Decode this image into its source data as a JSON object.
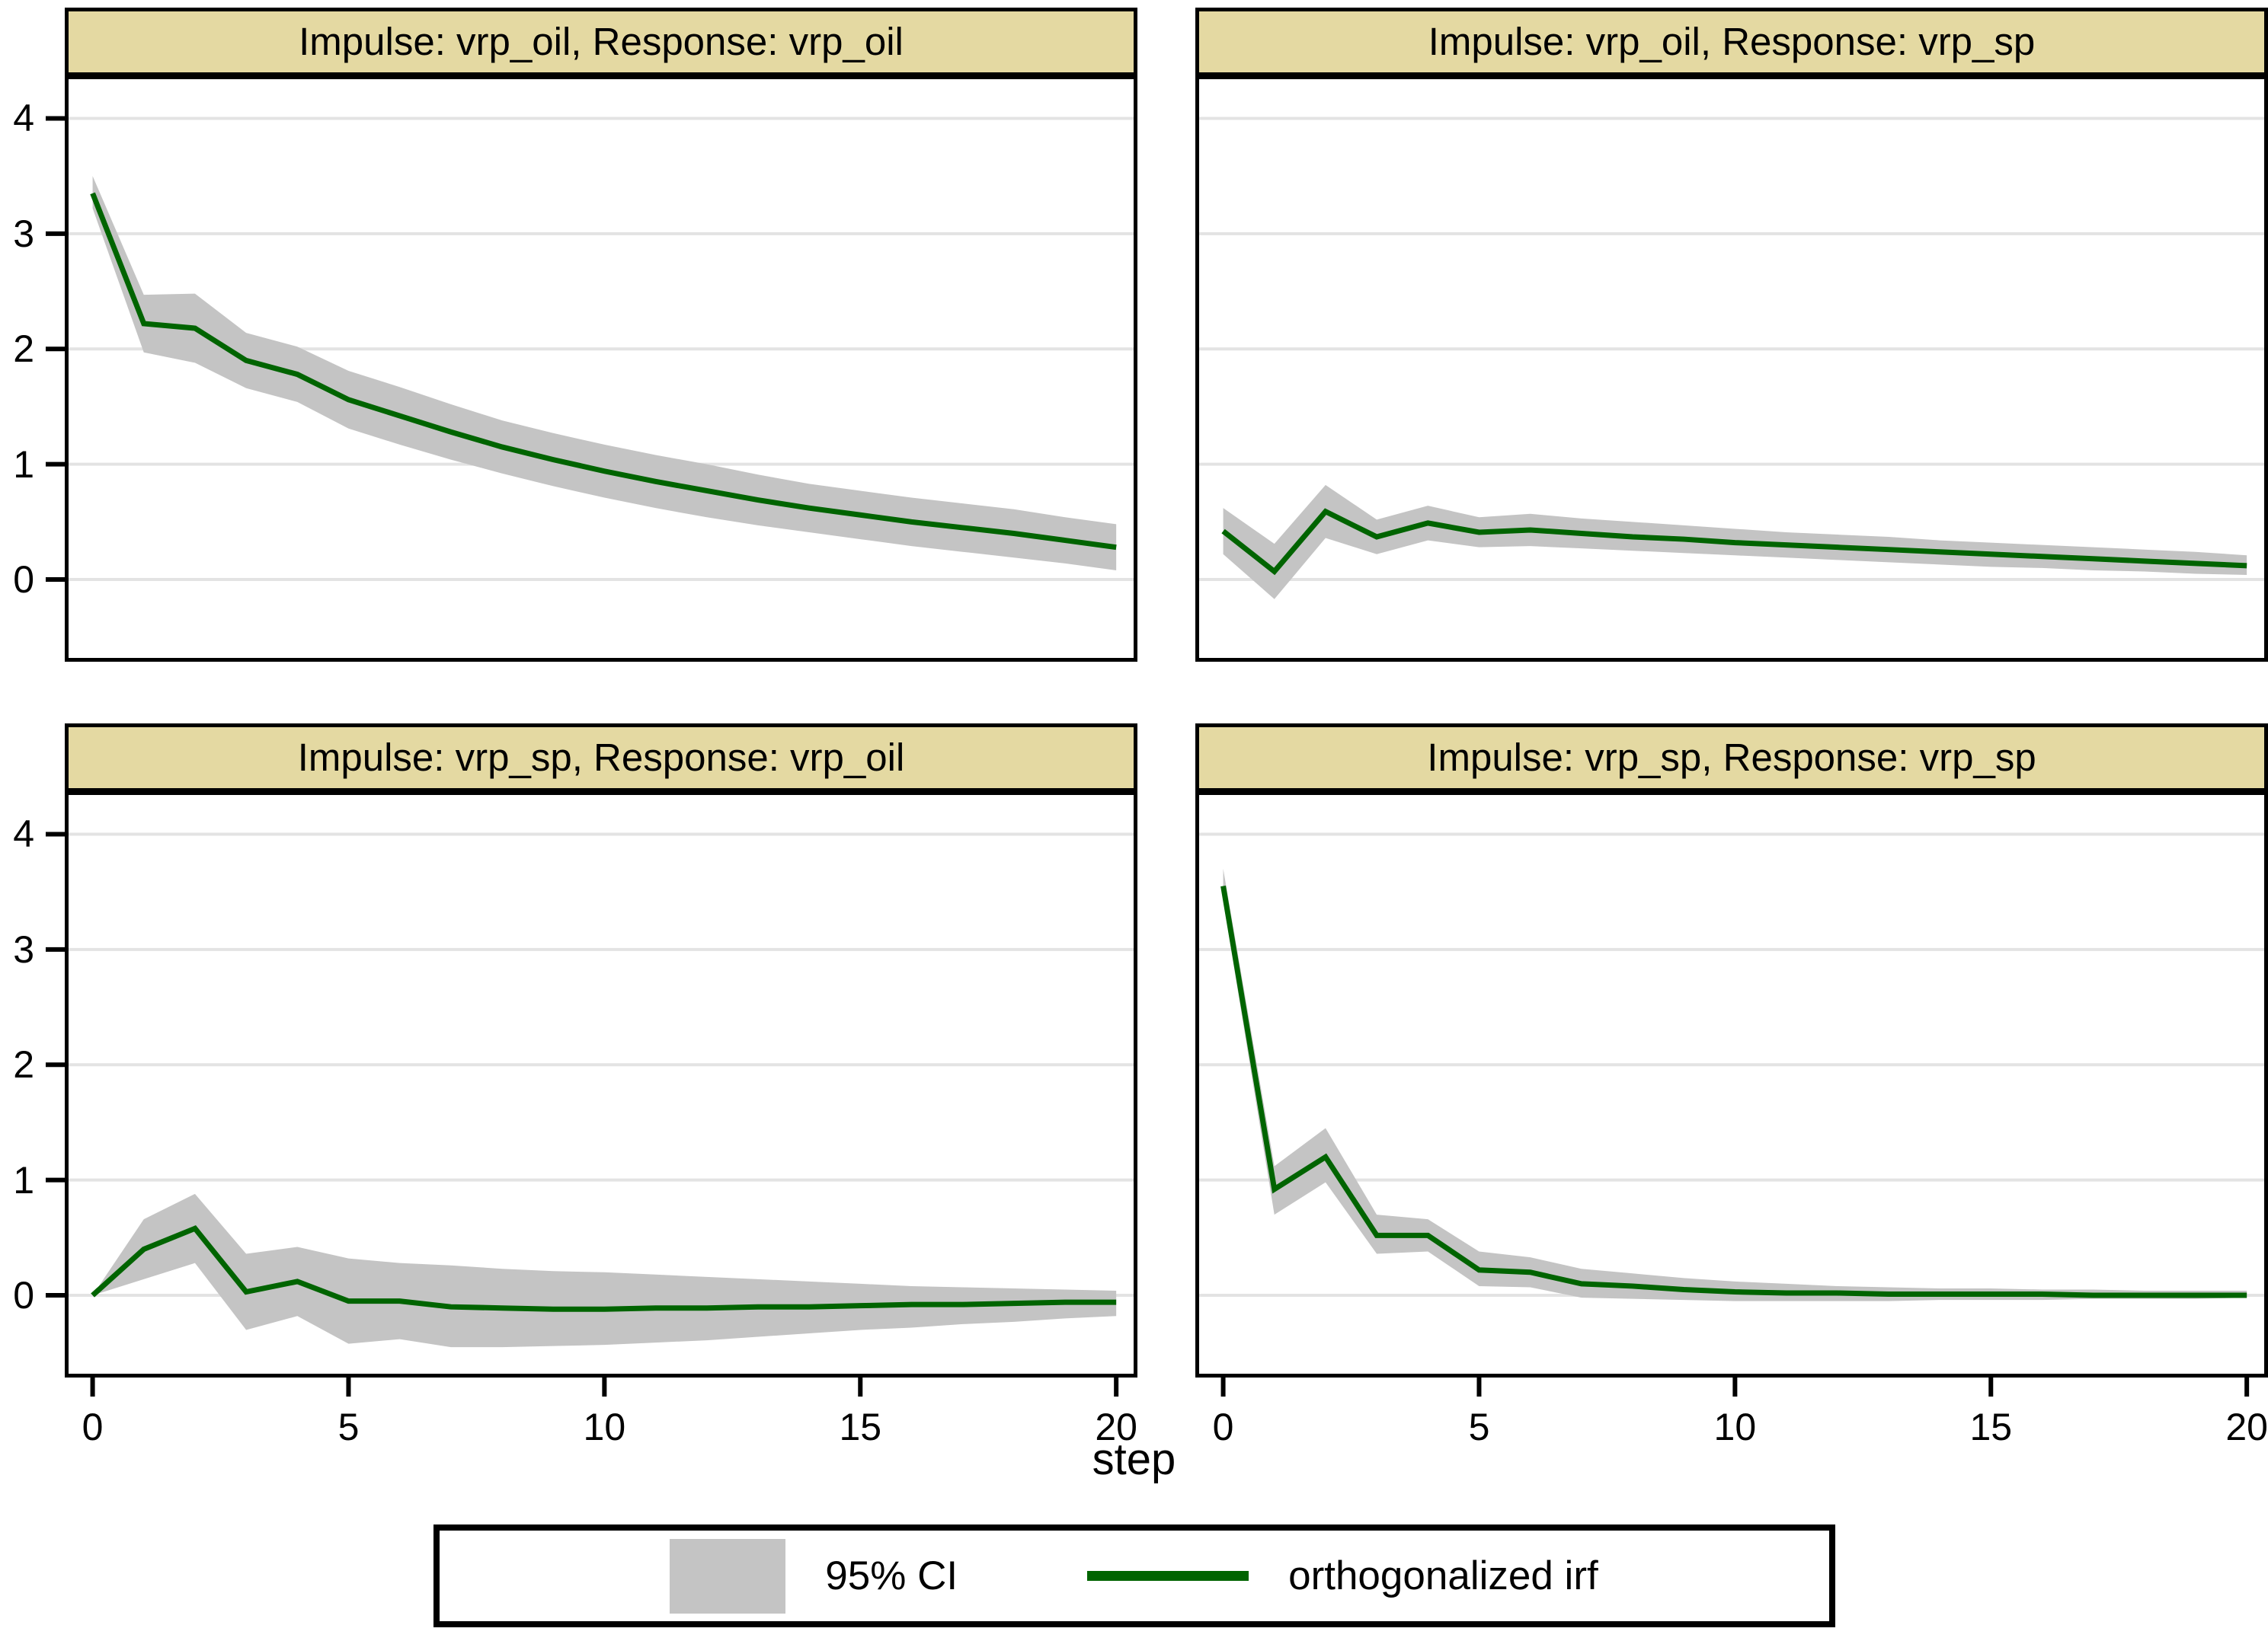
{
  "figure": {
    "xlabel": "step",
    "x_ticks": [
      0,
      5,
      10,
      15,
      20
    ],
    "y_ticks": [
      0,
      1,
      2,
      3,
      4
    ],
    "x_range": [
      -0.47,
      20.34
    ],
    "y_range": [
      -0.68,
      4.34
    ],
    "grid": true,
    "legend_position": "bottom",
    "colors": {
      "irf_line": "#006400",
      "ci_fill": "#c4c4c4",
      "title_bg": "#e4d9a2",
      "grid_line": "#e3e3e3",
      "axis": "#000000",
      "background": "#ffffff"
    }
  },
  "legend": {
    "ci_label": "95% CI",
    "irf_label": "orthogonalized irf"
  },
  "chart_data": [
    {
      "id": "oil-oil",
      "type": "area+line",
      "title": "Impulse: vrp_oil, Response: vrp_oil",
      "grid_row": 0,
      "grid_col": 0,
      "x": [
        0,
        1,
        2,
        3,
        4,
        5,
        6,
        7,
        8,
        9,
        10,
        11,
        12,
        13,
        14,
        15,
        16,
        17,
        18,
        19,
        20
      ],
      "irf": [
        3.35,
        2.22,
        2.18,
        1.9,
        1.78,
        1.56,
        1.42,
        1.28,
        1.15,
        1.04,
        0.94,
        0.85,
        0.77,
        0.69,
        0.62,
        0.56,
        0.5,
        0.45,
        0.4,
        0.34,
        0.28
      ],
      "ci_lower": [
        3.22,
        1.97,
        1.88,
        1.66,
        1.54,
        1.31,
        1.17,
        1.04,
        0.92,
        0.81,
        0.71,
        0.62,
        0.54,
        0.47,
        0.41,
        0.35,
        0.29,
        0.24,
        0.19,
        0.14,
        0.08
      ],
      "ci_upper": [
        3.5,
        2.47,
        2.48,
        2.14,
        2.02,
        1.81,
        1.67,
        1.52,
        1.38,
        1.27,
        1.17,
        1.08,
        1.0,
        0.91,
        0.83,
        0.77,
        0.71,
        0.66,
        0.61,
        0.54,
        0.48
      ]
    },
    {
      "id": "oil-sp",
      "type": "area+line",
      "title": "Impulse: vrp_oil, Response: vrp_sp",
      "grid_row": 0,
      "grid_col": 1,
      "x": [
        0,
        1,
        2,
        3,
        4,
        5,
        6,
        7,
        8,
        9,
        10,
        11,
        12,
        13,
        14,
        15,
        16,
        17,
        18,
        19,
        20
      ],
      "irf": [
        0.42,
        0.07,
        0.59,
        0.37,
        0.49,
        0.41,
        0.43,
        0.4,
        0.37,
        0.35,
        0.32,
        0.3,
        0.28,
        0.26,
        0.24,
        0.22,
        0.2,
        0.18,
        0.16,
        0.14,
        0.12
      ],
      "ci_lower": [
        0.22,
        -0.17,
        0.36,
        0.22,
        0.34,
        0.28,
        0.29,
        0.27,
        0.25,
        0.23,
        0.21,
        0.19,
        0.17,
        0.15,
        0.13,
        0.11,
        0.1,
        0.08,
        0.07,
        0.05,
        0.04
      ],
      "ci_upper": [
        0.62,
        0.31,
        0.82,
        0.52,
        0.64,
        0.54,
        0.57,
        0.53,
        0.5,
        0.47,
        0.44,
        0.41,
        0.39,
        0.37,
        0.34,
        0.32,
        0.3,
        0.28,
        0.26,
        0.24,
        0.21
      ]
    },
    {
      "id": "sp-oil",
      "type": "area+line",
      "title": "Impulse: vrp_sp, Response: vrp_oil",
      "grid_row": 1,
      "grid_col": 0,
      "x": [
        0,
        1,
        2,
        3,
        4,
        5,
        6,
        7,
        8,
        9,
        10,
        11,
        12,
        13,
        14,
        15,
        16,
        17,
        18,
        19,
        20
      ],
      "irf": [
        0.0,
        0.4,
        0.58,
        0.03,
        0.12,
        -0.05,
        -0.05,
        -0.1,
        -0.11,
        -0.12,
        -0.12,
        -0.11,
        -0.11,
        -0.1,
        -0.1,
        -0.09,
        -0.08,
        -0.08,
        -0.07,
        -0.06,
        -0.06
      ],
      "ci_lower": [
        0.0,
        0.14,
        0.28,
        -0.3,
        -0.18,
        -0.42,
        -0.38,
        -0.45,
        -0.45,
        -0.44,
        -0.43,
        -0.41,
        -0.39,
        -0.36,
        -0.33,
        -0.3,
        -0.28,
        -0.25,
        -0.23,
        -0.2,
        -0.18
      ],
      "ci_upper": [
        0.0,
        0.66,
        0.88,
        0.36,
        0.42,
        0.32,
        0.28,
        0.26,
        0.23,
        0.21,
        0.2,
        0.18,
        0.16,
        0.14,
        0.12,
        0.1,
        0.08,
        0.07,
        0.06,
        0.05,
        0.04
      ]
    },
    {
      "id": "sp-sp",
      "type": "area+line",
      "title": "Impulse: vrp_sp, Response: vrp_sp",
      "grid_row": 1,
      "grid_col": 1,
      "x": [
        0,
        1,
        2,
        3,
        4,
        5,
        6,
        7,
        8,
        9,
        10,
        11,
        12,
        13,
        14,
        15,
        16,
        17,
        18,
        19,
        20
      ],
      "irf": [
        3.55,
        0.92,
        1.2,
        0.52,
        0.52,
        0.22,
        0.2,
        0.1,
        0.08,
        0.05,
        0.03,
        0.02,
        0.02,
        0.01,
        0.01,
        0.01,
        0.01,
        0.0,
        0.0,
        0.0,
        0.0
      ],
      "ci_lower": [
        3.42,
        0.7,
        0.98,
        0.36,
        0.38,
        0.08,
        0.07,
        -0.02,
        -0.03,
        -0.04,
        -0.05,
        -0.05,
        -0.05,
        -0.05,
        -0.04,
        -0.04,
        -0.04,
        -0.03,
        -0.03,
        -0.03,
        -0.02
      ],
      "ci_upper": [
        3.7,
        1.12,
        1.45,
        0.7,
        0.66,
        0.38,
        0.33,
        0.23,
        0.19,
        0.15,
        0.12,
        0.1,
        0.08,
        0.07,
        0.06,
        0.06,
        0.05,
        0.05,
        0.04,
        0.04,
        0.04
      ]
    }
  ]
}
